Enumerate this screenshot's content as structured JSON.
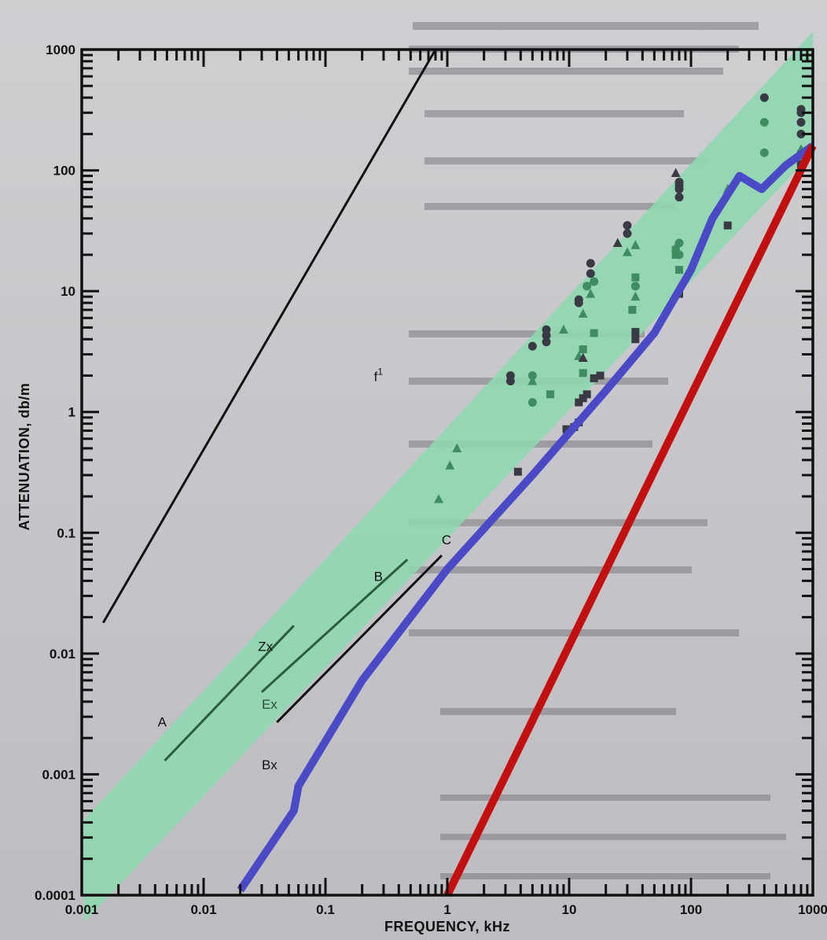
{
  "chart_data": {
    "type": "scatter",
    "title": "",
    "xlabel": "FREQUENCY, kHz",
    "ylabel": "ATTENUATION, db/m",
    "x_scale": "log",
    "y_scale": "log",
    "xlim": [
      0.001,
      1000
    ],
    "ylim": [
      0.0001,
      1000
    ],
    "x_ticks": [
      {
        "value": 0.001,
        "label": "0.001"
      },
      {
        "value": 0.01,
        "label": "0.01"
      },
      {
        "value": 0.1,
        "label": "0.1"
      },
      {
        "value": 1,
        "label": "1"
      },
      {
        "value": 10,
        "label": "10"
      },
      {
        "value": 100,
        "label": "100"
      },
      {
        "value": 1000,
        "label": "1000"
      }
    ],
    "y_ticks": [
      {
        "value": 0.0001,
        "label": "0.0001"
      },
      {
        "value": 0.001,
        "label": "0.001"
      },
      {
        "value": 0.01,
        "label": "0.01"
      },
      {
        "value": 0.1,
        "label": "0.1"
      },
      {
        "value": 1,
        "label": "1"
      },
      {
        "value": 10,
        "label": "10"
      },
      {
        "value": 100,
        "label": "100"
      },
      {
        "value": 1000,
        "label": "1000"
      }
    ],
    "grid": false,
    "band": {
      "color": "#8fd7b0",
      "lower": [
        [
          0.00105,
          6e-05
        ],
        [
          1000,
          140
        ]
      ],
      "upper": [
        [
          0.001,
          0.0004
        ],
        [
          1000,
          1400
        ]
      ]
    },
    "reference_line": {
      "label": "f",
      "superscript": "1",
      "x": [
        0.0015,
        0.8
      ],
      "y": [
        0.018,
        1000
      ],
      "label_at": [
        0.25,
        1.8
      ],
      "color": "#111111"
    },
    "segments": [
      {
        "label": "A",
        "x": [
          0.0048,
          0.055
        ],
        "y": [
          0.0013,
          0.017
        ],
        "color": "#2c5c3c",
        "label_at": [
          0.0042,
          0.0025
        ]
      },
      {
        "label": "B",
        "x": [
          0.03,
          0.47
        ],
        "y": [
          0.0048,
          0.06
        ],
        "color": "#2c5c3c",
        "label_at": [
          0.25,
          0.04
        ]
      },
      {
        "label": "C",
        "x": [
          0.04,
          0.9
        ],
        "y": [
          0.0027,
          0.065
        ],
        "color": "#111111",
        "label_at": [
          0.9,
          0.08
        ]
      }
    ],
    "point_labels": [
      {
        "label": "Zx",
        "x": 0.028,
        "y": 0.0105
      },
      {
        "label": "Ex",
        "x": 0.03,
        "y": 0.0035
      },
      {
        "label": "Bx",
        "x": 0.03,
        "y": 0.0011
      }
    ],
    "series": [
      {
        "marker": "circle",
        "color": "#3a3a44",
        "points": [
          [
            3.3,
            1.8
          ],
          [
            3.3,
            2.0
          ],
          [
            5,
            3.5
          ],
          [
            6.5,
            3.8
          ],
          [
            6.5,
            4.3
          ],
          [
            6.5,
            4.8
          ],
          [
            12,
            8
          ],
          [
            12,
            8.5
          ],
          [
            15,
            17
          ],
          [
            15,
            14
          ],
          [
            30,
            30
          ],
          [
            30,
            35
          ],
          [
            80,
            60
          ],
          [
            80,
            70
          ],
          [
            80,
            80
          ],
          [
            80,
            75
          ],
          [
            400,
            400
          ],
          [
            800,
            300
          ],
          [
            800,
            250
          ],
          [
            800,
            200
          ],
          [
            800,
            320
          ]
        ]
      },
      {
        "marker": "circle",
        "color": "#3f8c63",
        "points": [
          [
            5,
            2.0
          ],
          [
            5,
            1.2
          ],
          [
            14,
            11
          ],
          [
            16,
            12
          ],
          [
            35,
            11
          ],
          [
            80,
            25
          ],
          [
            80,
            20
          ],
          [
            400,
            250
          ],
          [
            400,
            140
          ],
          [
            800,
            140
          ]
        ]
      },
      {
        "marker": "triangle",
        "color": "#3f8c63",
        "points": [
          [
            0.85,
            0.19
          ],
          [
            1.05,
            0.36
          ],
          [
            1.2,
            0.5
          ],
          [
            5,
            1.8
          ],
          [
            9,
            4.8
          ],
          [
            12,
            2.9
          ],
          [
            13,
            6.5
          ],
          [
            15,
            9.5
          ],
          [
            30,
            21
          ],
          [
            35,
            24
          ],
          [
            35,
            9
          ],
          [
            75,
            23
          ],
          [
            200,
            70
          ],
          [
            800,
            150
          ]
        ]
      },
      {
        "marker": "triangle",
        "color": "#3a3a44",
        "points": [
          [
            13,
            2.8
          ],
          [
            25,
            25
          ],
          [
            75,
            95
          ],
          [
            800,
            120
          ]
        ]
      },
      {
        "marker": "square",
        "color": "#3f8c63",
        "points": [
          [
            7,
            1.4
          ],
          [
            13,
            2.1
          ],
          [
            13,
            3.3
          ],
          [
            16,
            4.5
          ],
          [
            33,
            7
          ],
          [
            35,
            13
          ],
          [
            75,
            20
          ],
          [
            75,
            22
          ],
          [
            80,
            15
          ],
          [
            800,
            130
          ]
        ]
      },
      {
        "marker": "square",
        "color": "#3a3a44",
        "points": [
          [
            3.8,
            0.32
          ],
          [
            9.5,
            0.72
          ],
          [
            11,
            0.75
          ],
          [
            12,
            0.82
          ],
          [
            12,
            1.2
          ],
          [
            13,
            1.3
          ],
          [
            14,
            1.4
          ],
          [
            16,
            1.9
          ],
          [
            18,
            2.0
          ],
          [
            35,
            4.0
          ],
          [
            35,
            4.6
          ],
          [
            80,
            9.5
          ],
          [
            200,
            35
          ],
          [
            800,
            110
          ]
        ]
      }
    ],
    "overlay_lines": [
      {
        "color": "#4a4ac6",
        "width": 10,
        "points": [
          [
            0.02,
            0.00011
          ],
          [
            0.055,
            0.0005
          ],
          [
            0.06,
            0.0008
          ],
          [
            0.2,
            0.006
          ],
          [
            1,
            0.05
          ],
          [
            5,
            0.3
          ],
          [
            20,
            1.5
          ],
          [
            50,
            4.5
          ],
          [
            100,
            15
          ],
          [
            150,
            40
          ],
          [
            250,
            90
          ],
          [
            380,
            70
          ],
          [
            600,
            110
          ],
          [
            1000,
            160
          ]
        ]
      },
      {
        "color": "#c21010",
        "width": 10,
        "points": [
          [
            1,
            0.0001
          ],
          [
            1000,
            160
          ]
        ]
      }
    ]
  }
}
